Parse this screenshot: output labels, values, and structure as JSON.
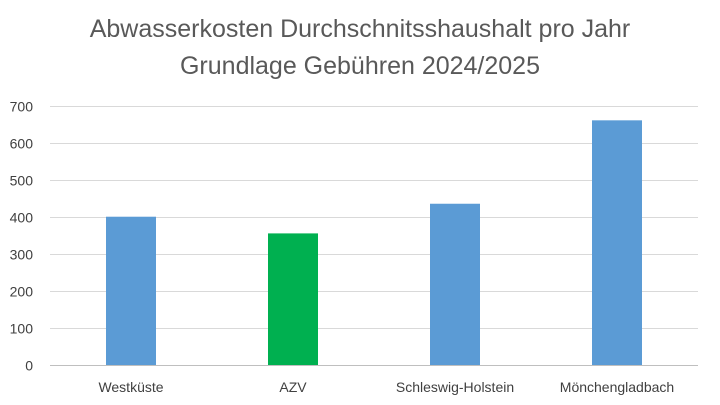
{
  "chart_data": {
    "type": "bar",
    "title": "Abwasserkosten Durchschnitsshaushalt pro Jahr",
    "subtitle": "Grundlage Gebühren 2024/2025",
    "categories": [
      "Westküste",
      "AZV",
      "Schleswig-Holstein",
      "Mönchengladbach"
    ],
    "values": [
      400,
      355,
      435,
      660
    ],
    "bar_colors": [
      "#5b9bd5",
      "#00b050",
      "#5b9bd5",
      "#5b9bd5"
    ],
    "ylim": [
      0,
      700
    ],
    "yticks": [
      "0",
      "100",
      "200",
      "300",
      "400",
      "500",
      "600",
      "700"
    ],
    "xlabel": "",
    "ylabel": "",
    "grid": true,
    "legend": "none"
  },
  "colors": {
    "primary_bar": "#5b9bd5",
    "highlight_bar": "#00b050"
  }
}
